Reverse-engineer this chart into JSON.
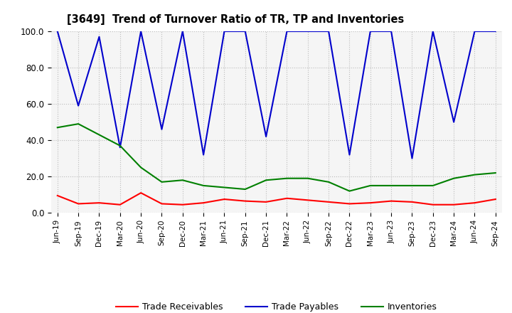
{
  "title": "[3649]  Trend of Turnover Ratio of TR, TP and Inventories",
  "xlabels": [
    "Jun-19",
    "Sep-19",
    "Dec-19",
    "Mar-20",
    "Jun-20",
    "Sep-20",
    "Dec-20",
    "Mar-21",
    "Jun-21",
    "Sep-21",
    "Dec-21",
    "Mar-22",
    "Jun-22",
    "Sep-22",
    "Dec-22",
    "Mar-23",
    "Jun-23",
    "Sep-23",
    "Dec-23",
    "Mar-24",
    "Jun-24",
    "Sep-24"
  ],
  "ylim": [
    0,
    100
  ],
  "yticks": [
    0.0,
    20.0,
    40.0,
    60.0,
    80.0,
    100.0
  ],
  "trade_receivables": [
    9.5,
    5.0,
    5.5,
    4.5,
    11.0,
    5.0,
    4.5,
    5.5,
    7.5,
    6.5,
    6.0,
    8.0,
    7.0,
    6.0,
    5.0,
    5.5,
    6.5,
    6.0,
    4.5,
    4.5,
    5.5,
    7.5
  ],
  "trade_payables": [
    100,
    59,
    97,
    36,
    100,
    46,
    100,
    32,
    100,
    100,
    42,
    100,
    100,
    100,
    32,
    100,
    100,
    30,
    100,
    50,
    100,
    100
  ],
  "inventories": [
    47,
    49,
    43,
    37,
    25,
    17,
    18,
    15,
    14,
    13,
    18,
    19,
    19,
    17,
    12,
    15,
    15,
    15,
    15,
    19,
    21,
    22
  ],
  "color_tr": "#ff0000",
  "color_tp": "#0000ccff",
  "color_inv": "#008000",
  "legend_tr": "Trade Receivables",
  "legend_tp": "Trade Payables",
  "legend_inv": "Inventories",
  "background_color": "#ffffff",
  "plot_bg_color": "#f5f5f5",
  "grid_color": "#bbbbbb"
}
